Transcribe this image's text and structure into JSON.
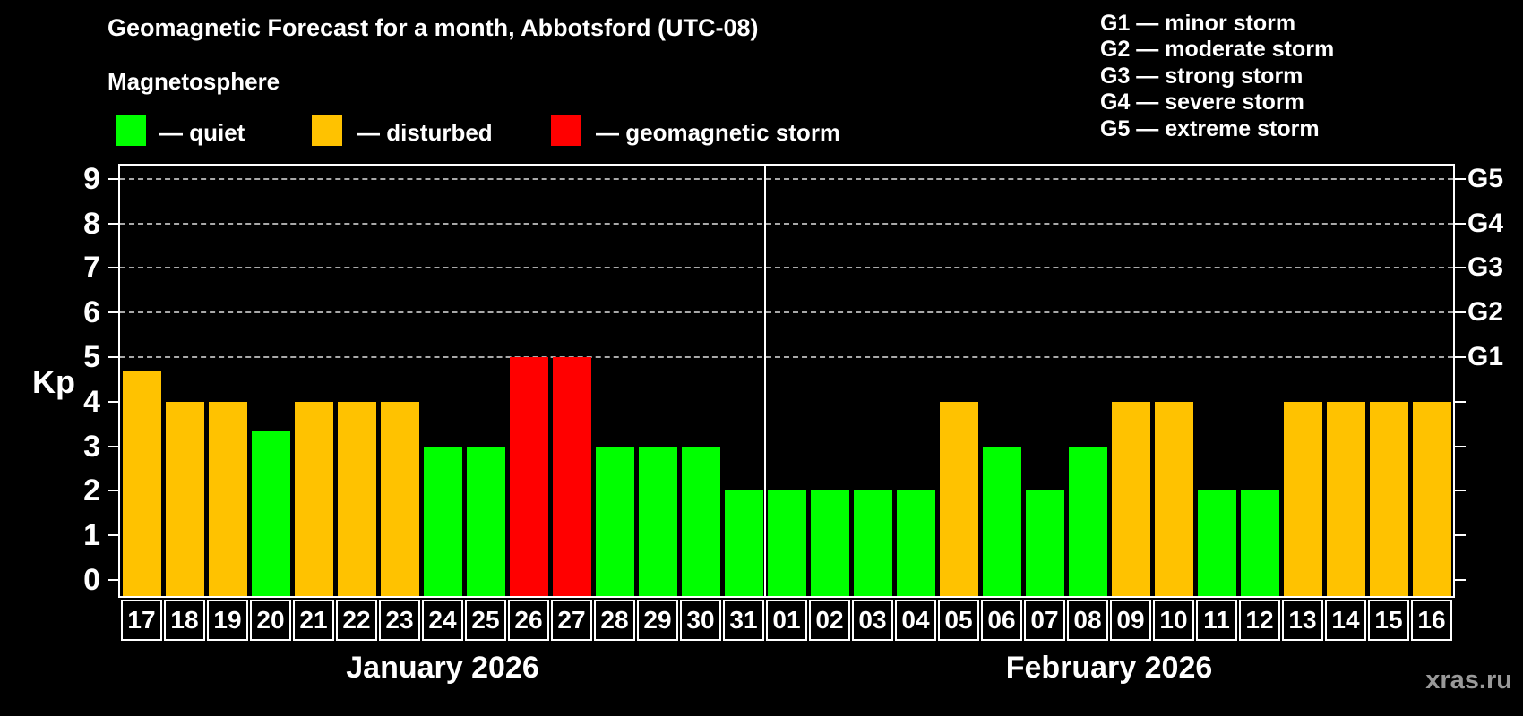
{
  "title": "Geomagnetic Forecast for a month, Abbotsford (UTC-08)",
  "subtitle": "Magnetosphere",
  "legend": {
    "items": [
      {
        "state": "quiet",
        "label": "— quiet",
        "color": "#00ff00"
      },
      {
        "state": "disturbed",
        "label": "— disturbed",
        "color": "#ffc200"
      },
      {
        "state": "storm",
        "label": "— geomagnetic storm",
        "color": "#ff0000"
      }
    ]
  },
  "g_legend": {
    "items": [
      "G1 — minor storm",
      "G2 — moderate storm",
      "G3 — strong storm",
      "G4 — severe storm",
      "G5 — extreme storm"
    ]
  },
  "watermark": "xras.ru",
  "chart_data": {
    "type": "bar",
    "ylabel": "Kp",
    "ylim": [
      0,
      9
    ],
    "y_ticks": [
      0,
      1,
      2,
      3,
      4,
      5,
      6,
      7,
      8,
      9
    ],
    "grid_levels": [
      5,
      6,
      7,
      8,
      9
    ],
    "grid_on": true,
    "right_axis_labels": [
      {
        "label": "G5",
        "kp": 9
      },
      {
        "label": "G4",
        "kp": 8
      },
      {
        "label": "G3",
        "kp": 7
      },
      {
        "label": "G2",
        "kp": 6
      },
      {
        "label": "G1",
        "kp": 5
      }
    ],
    "state_colors": {
      "quiet": "#00ff00",
      "disturbed": "#ffc200",
      "storm": "#ff0000"
    },
    "months": [
      {
        "name": "January 2026",
        "days": [
          {
            "day": "17",
            "kp": 4.67,
            "state": "disturbed"
          },
          {
            "day": "18",
            "kp": 4,
            "state": "disturbed"
          },
          {
            "day": "19",
            "kp": 4,
            "state": "disturbed"
          },
          {
            "day": "20",
            "kp": 3.33,
            "state": "quiet"
          },
          {
            "day": "21",
            "kp": 4,
            "state": "disturbed"
          },
          {
            "day": "22",
            "kp": 4,
            "state": "disturbed"
          },
          {
            "day": "23",
            "kp": 4,
            "state": "disturbed"
          },
          {
            "day": "24",
            "kp": 3,
            "state": "quiet"
          },
          {
            "day": "25",
            "kp": 3,
            "state": "quiet"
          },
          {
            "day": "26",
            "kp": 5,
            "state": "storm"
          },
          {
            "day": "27",
            "kp": 5,
            "state": "storm"
          },
          {
            "day": "28",
            "kp": 3,
            "state": "quiet"
          },
          {
            "day": "29",
            "kp": 3,
            "state": "quiet"
          },
          {
            "day": "30",
            "kp": 3,
            "state": "quiet"
          },
          {
            "day": "31",
            "kp": 2,
            "state": "quiet"
          }
        ]
      },
      {
        "name": "February 2026",
        "days": [
          {
            "day": "01",
            "kp": 2,
            "state": "quiet"
          },
          {
            "day": "02",
            "kp": 2,
            "state": "quiet"
          },
          {
            "day": "03",
            "kp": 2,
            "state": "quiet"
          },
          {
            "day": "04",
            "kp": 2,
            "state": "quiet"
          },
          {
            "day": "05",
            "kp": 4,
            "state": "disturbed"
          },
          {
            "day": "06",
            "kp": 3,
            "state": "quiet"
          },
          {
            "day": "07",
            "kp": 2,
            "state": "quiet"
          },
          {
            "day": "08",
            "kp": 3,
            "state": "quiet"
          },
          {
            "day": "09",
            "kp": 4,
            "state": "disturbed"
          },
          {
            "day": "10",
            "kp": 4,
            "state": "disturbed"
          },
          {
            "day": "11",
            "kp": 2,
            "state": "quiet"
          },
          {
            "day": "12",
            "kp": 2,
            "state": "quiet"
          },
          {
            "day": "13",
            "kp": 4,
            "state": "disturbed"
          },
          {
            "day": "14",
            "kp": 4,
            "state": "disturbed"
          },
          {
            "day": "15",
            "kp": 4,
            "state": "disturbed"
          },
          {
            "day": "16",
            "kp": 4,
            "state": "disturbed"
          }
        ]
      }
    ]
  }
}
